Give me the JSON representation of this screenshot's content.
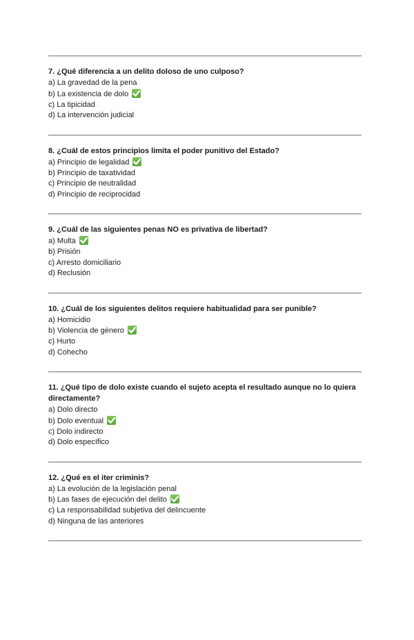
{
  "page": {
    "background_color": "#ffffff",
    "text_color": "#1b1b1b",
    "divider_color": "#b2b2b2",
    "checkmark_icon": {
      "meaning": "correct-answer",
      "color_top": "#82c45c",
      "color_bottom": "#55a634",
      "glyph_color": "#ffffff"
    }
  },
  "quiz": {
    "questions": [
      {
        "number": "7.",
        "question": "¿Qué diferencia a un delito doloso de uno culposo?",
        "options": [
          {
            "text": "a) La gravedad de la pena",
            "checked": false
          },
          {
            "text": "b) La existencia de dolo",
            "checked": true
          },
          {
            "text": "c) La tipicidad",
            "checked": false
          },
          {
            "text": "d) La intervención judicial",
            "checked": false
          }
        ]
      },
      {
        "number": "8.",
        "question": "¿Cuál de estos principios limita el poder punitivo del Estado?",
        "options": [
          {
            "text": "a) Principio de legalidad",
            "checked": true
          },
          {
            "text": "b) Principio de taxatividad",
            "checked": false
          },
          {
            "text": "c) Principio de neutralidad",
            "checked": false
          },
          {
            "text": "d) Principio de reciprocidad",
            "checked": false
          }
        ]
      },
      {
        "number": "9.",
        "question": "¿Cuál de las siguientes penas NO es privativa de libertad?",
        "options": [
          {
            "text": "a) Multa",
            "checked": true
          },
          {
            "text": "b) Prisión",
            "checked": false
          },
          {
            "text": "c) Arresto domiciliario",
            "checked": false
          },
          {
            "text": "d) Reclusión",
            "checked": false
          }
        ]
      },
      {
        "number": "10.",
        "question": "¿Cuál de los siguientes delitos requiere habitualidad para ser punible?",
        "options": [
          {
            "text": "a) Homicidio",
            "checked": false
          },
          {
            "text": "b) Violencia de género",
            "checked": true
          },
          {
            "text": "c) Hurto",
            "checked": false
          },
          {
            "text": "d) Cohecho",
            "checked": false
          }
        ]
      },
      {
        "number": "11.",
        "question": "¿Qué tipo de dolo existe cuando el sujeto acepta el resultado aunque no lo quiera directamente?",
        "options": [
          {
            "text": "a) Dolo directo",
            "checked": false
          },
          {
            "text": "b) Dolo eventual",
            "checked": true
          },
          {
            "text": "c) Dolo indirecto",
            "checked": false
          },
          {
            "text": "d) Dolo específico",
            "checked": false
          }
        ]
      },
      {
        "number": "12.",
        "question": "¿Qué es el iter criminis?",
        "options": [
          {
            "text": "a) La evolución de la legislación penal",
            "checked": false
          },
          {
            "text": "b) Las fases de ejecución del delito",
            "checked": true
          },
          {
            "text": "c) La responsabilidad subjetiva del delincuente",
            "checked": false
          },
          {
            "text": "d) Ninguna de las anteriores",
            "checked": false
          }
        ]
      }
    ]
  }
}
